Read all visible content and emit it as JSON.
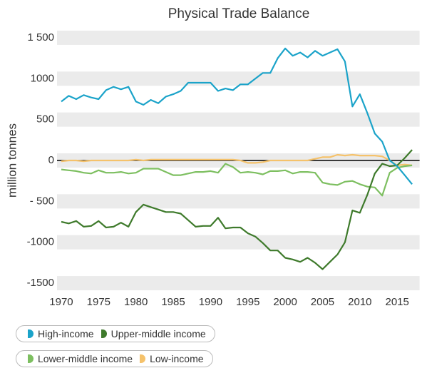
{
  "chart_data": {
    "type": "line",
    "title": "Physical Trade Balance",
    "y_label": "million tonnes",
    "x": [
      1970,
      1971,
      1972,
      1973,
      1974,
      1975,
      1976,
      1977,
      1978,
      1979,
      1980,
      1981,
      1982,
      1983,
      1984,
      1985,
      1986,
      1987,
      1988,
      1989,
      1990,
      1991,
      1992,
      1993,
      1994,
      1995,
      1996,
      1997,
      1998,
      1999,
      2000,
      2001,
      2002,
      2003,
      2004,
      2005,
      2006,
      2007,
      2008,
      2009,
      2010,
      2011,
      2012,
      2013,
      2014,
      2015,
      2016,
      2017
    ],
    "xlim": [
      1969,
      2018
    ],
    "xticks": [
      1970,
      1975,
      1980,
      1985,
      1990,
      1995,
      2000,
      2005,
      2010,
      2015
    ],
    "ylim": [
      -1600,
      1600
    ],
    "yticks": [
      {
        "value": 1500,
        "label": "1 500"
      },
      1000,
      500,
      0,
      {
        "value": -500,
        "label": "- 500"
      },
      -1000,
      -1500
    ],
    "grid": "bands",
    "series": [
      {
        "name": "High-income",
        "color": "#1ba3c9",
        "values": [
          720,
          790,
          750,
          800,
          770,
          750,
          860,
          900,
          870,
          900,
          720,
          680,
          740,
          700,
          780,
          810,
          850,
          950,
          950,
          950,
          950,
          850,
          880,
          860,
          930,
          930,
          1000,
          1070,
          1070,
          1250,
          1370,
          1280,
          1320,
          1260,
          1340,
          1280,
          1320,
          1360,
          1210,
          660,
          810,
          580,
          330,
          230,
          0,
          -70,
          -180,
          -290
        ]
      },
      {
        "name": "Upper-middle income",
        "color": "#3e7a2b",
        "values": [
          -750,
          -770,
          -740,
          -810,
          -800,
          -740,
          -820,
          -810,
          -760,
          -810,
          -630,
          -540,
          -570,
          -600,
          -630,
          -630,
          -650,
          -730,
          -810,
          -800,
          -800,
          -700,
          -830,
          -820,
          -820,
          -890,
          -930,
          -1010,
          -1100,
          -1100,
          -1190,
          -1210,
          -1240,
          -1190,
          -1250,
          -1330,
          -1240,
          -1150,
          -1000,
          -610,
          -640,
          -420,
          -160,
          -40,
          -70,
          -60,
          30,
          130
        ]
      },
      {
        "name": "Lower-middle income",
        "color": "#7dbf60",
        "values": [
          -110,
          -120,
          -130,
          -150,
          -160,
          -120,
          -150,
          -150,
          -140,
          -160,
          -150,
          -100,
          -100,
          -100,
          -140,
          -180,
          -180,
          -160,
          -140,
          -140,
          -130,
          -150,
          -40,
          -80,
          -150,
          -140,
          -150,
          -170,
          -130,
          -130,
          -120,
          -160,
          -140,
          -140,
          -150,
          -270,
          -290,
          -300,
          -260,
          -250,
          -290,
          -320,
          -330,
          -430,
          -150,
          -90,
          -70,
          -60
        ]
      },
      {
        "name": "Low-income",
        "color": "#f5c26b",
        "values": [
          -10,
          0,
          0,
          -10,
          0,
          0,
          0,
          0,
          0,
          0,
          10,
          0,
          10,
          10,
          10,
          10,
          10,
          10,
          10,
          10,
          10,
          10,
          10,
          10,
          0,
          -30,
          -30,
          -20,
          0,
          0,
          0,
          0,
          0,
          0,
          20,
          40,
          40,
          70,
          60,
          70,
          60,
          60,
          60,
          50,
          0,
          -60,
          -50,
          -60
        ]
      }
    ]
  }
}
